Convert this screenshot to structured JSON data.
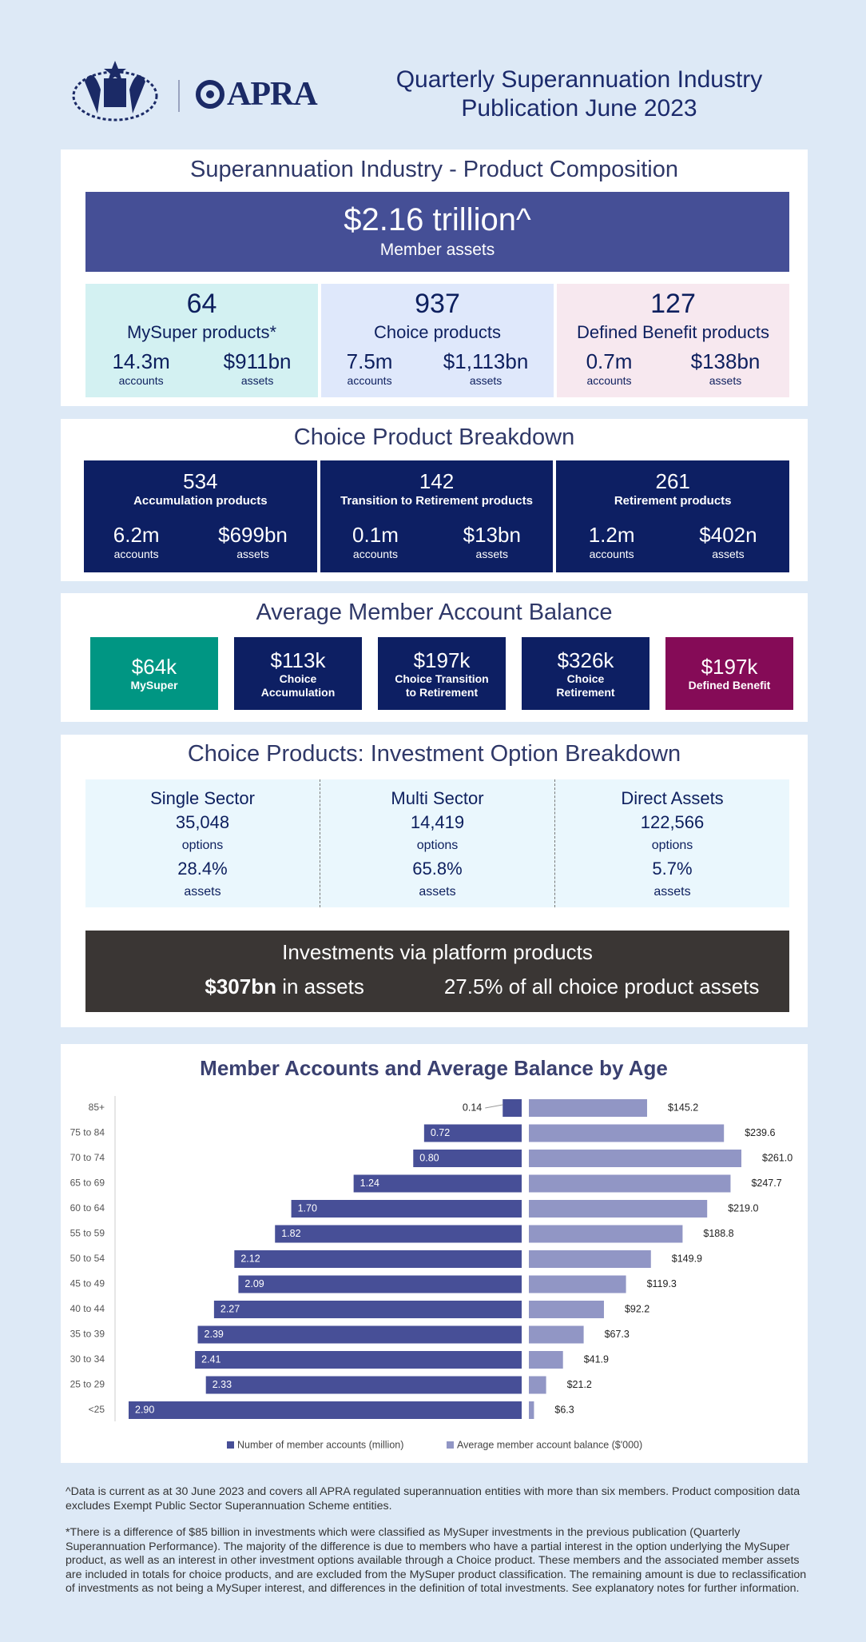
{
  "header": {
    "logo_text": "APRA",
    "title": "Quarterly Superannuation Industry Publication June 2023"
  },
  "composition": {
    "title": "Superannuation Industry - Product Composition",
    "total": {
      "value": "$2.16 trillion^",
      "label": "Member assets"
    },
    "products": [
      {
        "count": "64",
        "name": "MySuper products*",
        "accounts": "14.3m",
        "accounts_label": "accounts",
        "assets": "$911bn",
        "assets_label": "assets"
      },
      {
        "count": "937",
        "name": "Choice products",
        "accounts": "7.5m",
        "accounts_label": "accounts",
        "assets": "$1,113bn",
        "assets_label": "assets"
      },
      {
        "count": "127",
        "name": "Defined Benefit products",
        "accounts": "0.7m",
        "accounts_label": "accounts",
        "assets": "$138bn",
        "assets_label": "assets"
      }
    ]
  },
  "choice_breakdown": {
    "title": "Choice Product Breakdown",
    "products": [
      {
        "count": "534",
        "name": "Accumulation products",
        "accounts": "6.2m",
        "accounts_label": "accounts",
        "assets": "$699bn",
        "assets_label": "assets"
      },
      {
        "count": "142",
        "name": "Transition to Retirement products",
        "accounts": "0.1m",
        "accounts_label": "accounts",
        "assets": "$13bn",
        "assets_label": "assets"
      },
      {
        "count": "261",
        "name": "Retirement products",
        "accounts": "1.2m",
        "accounts_label": "accounts",
        "assets": "$402n",
        "assets_label": "assets"
      }
    ]
  },
  "average_balance": {
    "title": "Average Member Account Balance",
    "cards": [
      {
        "value": "$64k",
        "label": "MySuper"
      },
      {
        "value": "$113k",
        "label": "Choice Accumulation"
      },
      {
        "value": "$197k",
        "label": "Choice Transition to Retirement"
      },
      {
        "value": "$326k",
        "label": "Choice Retirement"
      },
      {
        "value": "$197k",
        "label": "Defined Benefit"
      }
    ]
  },
  "investment_options": {
    "title": "Choice Products: Investment Option Breakdown",
    "columns": [
      {
        "name": "Single Sector",
        "options": "35,048",
        "options_label": "options",
        "assets": "28.4%",
        "assets_label": "assets"
      },
      {
        "name": "Multi Sector",
        "options": "14,419",
        "options_label": "options",
        "assets": "65.8%",
        "assets_label": "assets"
      },
      {
        "name": "Direct Assets",
        "options": "122,566",
        "options_label": "options",
        "assets": "5.7%",
        "assets_label": "assets"
      }
    ]
  },
  "platform": {
    "title": "Investments via platform products",
    "assets_value": "$307bn",
    "assets_text": "in assets",
    "share_value": "27.5%",
    "share_text": "of all choice product assets"
  },
  "chart_data": {
    "type": "butterfly",
    "title": "Member Accounts and Average Balance by Age",
    "categories": [
      "85+",
      "75 to 84",
      "70 to 74",
      "65 to 69",
      "60 to 64",
      "55 to 59",
      "50 to 54",
      "45 to 49",
      "40 to 44",
      "35 to 39",
      "30 to 34",
      "25 to 29",
      "<25"
    ],
    "series": [
      {
        "name": "Number of member accounts (million)",
        "color": "#474f97",
        "values": [
          0.14,
          0.72,
          0.8,
          1.24,
          1.7,
          1.82,
          2.12,
          2.09,
          2.27,
          2.39,
          2.41,
          2.33,
          2.9
        ],
        "value_labels": [
          "0.14",
          "0.72",
          "0.80",
          "1.24",
          "1.70",
          "1.82",
          "2.12",
          "2.09",
          "2.27",
          "2.39",
          "2.41",
          "2.33",
          "2.90"
        ]
      },
      {
        "name": "Average member account balance ($'000)",
        "color": "#9196c5",
        "values": [
          145.2,
          239.6,
          261.0,
          247.7,
          219.0,
          188.8,
          149.9,
          119.3,
          92.2,
          67.3,
          41.9,
          21.2,
          6.3
        ],
        "value_labels": [
          "$145.2",
          "$239.6",
          "$261.0",
          "$247.7",
          "$219.0",
          "$188.8",
          "$149.9",
          "$119.3",
          "$92.2",
          "$67.3",
          "$41.9",
          "$21.2",
          "$6.3"
        ]
      }
    ]
  },
  "footnotes": [
    "^Data is current as at 30 June 2023 and covers all APRA regulated superannuation entities with more than six members.  Product composition data excludes Exempt Public Sector Superannuation Scheme entities.",
    "*There is a difference of $85 billion in investments which were classified as MySuper investments in the previous publication (Quarterly Superannuation Performance). The majority of the difference is due to members who have a partial interest in the option underlying the MySuper product, as well as an interest in other investment options available through a Choice product. These members and the associated member assets are included in totals for choice products, and are excluded from the MySuper product classification. The remaining amount is due to reclassification of investments as not being a MySuper interest, and differences in the definition of total investments. See explanatory notes for further information."
  ]
}
